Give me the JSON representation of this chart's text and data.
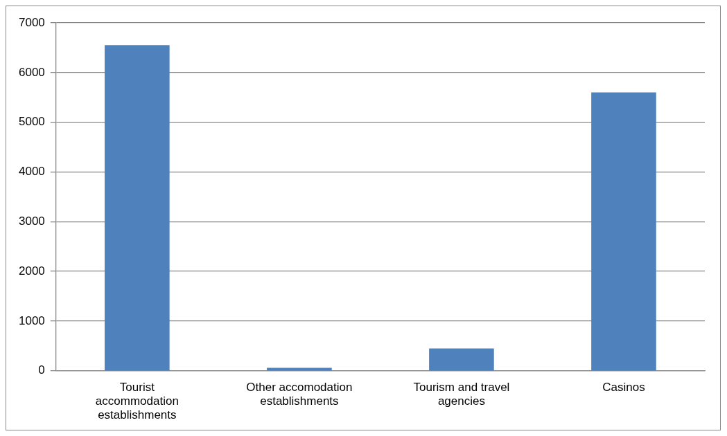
{
  "chart_data": {
    "type": "bar",
    "categories": [
      "Tourist accommodation establishments",
      "Other accomodation establishments",
      "Tourism and travel agencies",
      "Casinos"
    ],
    "values": [
      6550,
      60,
      450,
      5600
    ],
    "color": "#4f81bd",
    "ylim": [
      0,
      7000
    ],
    "yticks": [
      0,
      1000,
      2000,
      3000,
      4000,
      5000,
      6000,
      7000
    ],
    "grid": "y",
    "legend": false
  }
}
